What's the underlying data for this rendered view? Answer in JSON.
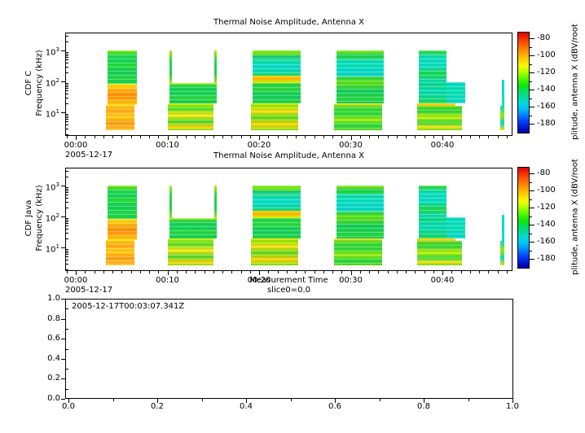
{
  "colors": {
    "background": "#ffffff",
    "axis": "#000000",
    "text": "#000000"
  },
  "chart_data": [
    {
      "id": "spectrogram-cdf-c",
      "type": "heatmap",
      "title": "Thermal Noise Amplitude, Antenna X",
      "ylabel_lines": [
        "CDF C",
        "Frequency (kHz)"
      ],
      "y_scale": "log",
      "y_units": "kHz",
      "y_major_ticks": [
        10,
        100,
        1000
      ],
      "y_range_kHz": [
        1.75,
        3980
      ],
      "x_axis": {
        "date": "2005-12-17",
        "range_minutes": [
          -1.16,
          47.64
        ],
        "minor_tick_step_minutes": 1,
        "major_ticks": [
          {
            "t": 0,
            "label": "00:00"
          },
          {
            "t": 10,
            "label": "00:10"
          },
          {
            "t": 20,
            "label": "00:20"
          },
          {
            "t": 30,
            "label": "00:30"
          },
          {
            "t": 40,
            "label": "00:40"
          }
        ]
      },
      "colorbar": {
        "label": "plitude, antenna X (dBV/root",
        "major_ticks": [
          -80,
          -100,
          -120,
          -140,
          -160,
          -180
        ],
        "minor_ticks": [
          -90,
          -110,
          -130,
          -150,
          -170
        ],
        "value_range_top_bottom": [
          -72,
          -191
        ],
        "gradient": "#dc0000 0%,#f83800 7%,#ff6e00 14%,#ffa400 21%,#ffd800 28%,#f4fc00 34%,#aaff00 40%,#58f800 46%,#14e800 52%,#00e052 58%,#00dc9c 64%,#00dcd8 70%,#00c0f4 76%,#0088ff 82%,#0048ff 88%,#001cd8 94%,#0000a8 100%"
      },
      "blocks": [
        {
          "t": [
            3.5,
            6.7
          ],
          "f": [
            85,
            1000
          ],
          "streak": true,
          "stops": "#8ce800 0%,#2ada46 12%,#12d25a 30%,#28dc38 45%,#10ce5c 62%,#24d846 80%,#18d050 100%"
        },
        {
          "t": [
            3.5,
            6.7
          ],
          "f": [
            17,
            85
          ],
          "streak": true,
          "stops": "#ffe400 0%,#ffae10 30%,#ff8c06 55%,#ffb20a 80%,#ffc800 100%"
        },
        {
          "t": [
            3.3,
            6.4
          ],
          "f": [
            2.6,
            17
          ],
          "streak": true,
          "stops": "#ffd200 0%,#ffa51e 22%,#ffcf10 45%,#ff9c14 70%,#ffc328 100%"
        },
        {
          "t": [
            10.2,
            10.45
          ],
          "f": [
            90,
            1000
          ],
          "stops": "#b4ec00 0%,#28d846 30%,#16d054 70%,#9ce800 100%"
        },
        {
          "t": [
            15.1,
            15.35
          ],
          "f": [
            90,
            1000
          ],
          "stops": "#b4ec00 0%,#28d846 30%,#16d054 70%,#9ce800 100%"
        },
        {
          "t": [
            10.2,
            15.35
          ],
          "f": [
            19,
            90
          ],
          "streak": true,
          "stops": "#b4f000 0%,#1ed44e 15%,#12d05a 45%,#2ad842 70%,#16ce54 100%"
        },
        {
          "t": [
            10.0,
            15.0
          ],
          "f": [
            2.6,
            19
          ],
          "streak": true,
          "stops": "#d2f000 0%,#4cdc28 20%,#ffe80a 45%,#46d82e 68%,#ffd400 88%,#8ae400 100%"
        },
        {
          "t": [
            19.3,
            24.5
          ],
          "f": [
            480,
            1000
          ],
          "streak": true,
          "stops": "#4adc24 0%,#9aec00 20%,#1ed24e 55%,#12ceb0 85%,#20d846 100%"
        },
        {
          "t": [
            19.3,
            24.5
          ],
          "f": [
            150,
            480
          ],
          "streak": true,
          "stops": "#0adc9a 0%,#06dcc8 35%,#0ad8c0 60%,#14da7c 100%"
        },
        {
          "t": [
            19.3,
            24.5
          ],
          "f": [
            88,
            150
          ],
          "stops": "#ffdc00 0%,#ffaa0a 45%,#c8ec00 80%,#ffe400 100%"
        },
        {
          "t": [
            19.3,
            24.5
          ],
          "f": [
            19,
            88
          ],
          "streak": true,
          "stops": "#1cd24e 0%,#2eda3c 30%,#10cc5e 60%,#26d644 100%"
        },
        {
          "t": [
            19.1,
            24.3
          ],
          "f": [
            2.6,
            19
          ],
          "streak": true,
          "stops": "#ffe000 0%,#8ce604 10%,#ffdc0a 30%,#54dc1e 52%,#ffd000 78%,#7ce40a 100%"
        },
        {
          "t": [
            28.4,
            33.6
          ],
          "f": [
            500,
            1000
          ],
          "streak": true,
          "stops": "#2eda3a 0%,#96ec00 15%,#16d254 45%,#22d846 75%,#12ce58 100%"
        },
        {
          "t": [
            28.4,
            33.6
          ],
          "f": [
            140,
            500
          ],
          "streak": true,
          "stops": "#06dcc2 0%,#0ae0b2 30%,#06d8cc 65%,#0cd8ba 100%"
        },
        {
          "t": [
            28.4,
            33.6
          ],
          "f": [
            19,
            140
          ],
          "streak": true,
          "stops": "#1ed44c 0%,#62e012 22%,#10cc5e 55%,#28d642 85%,#14ce56 100%"
        },
        {
          "t": [
            28.2,
            33.4
          ],
          "f": [
            2.6,
            19
          ],
          "streak": true,
          "stops": "#ffe000 0%,#3eda2e 15%,#2ed83a 40%,#9aec04 62%,#22d246 82%,#60de16 100%"
        },
        {
          "t": [
            37.4,
            40.4
          ],
          "f": [
            95,
            1000
          ],
          "streak": true,
          "stops": "#36da30 0%,#0adcba 22%,#08dec0 50%,#1ed64a 75%,#06d8c4 100%"
        },
        {
          "t": [
            37.4,
            40.4
          ],
          "f": [
            19,
            95
          ],
          "streak": true,
          "stops": "#10d878 0%,#06dab8 40%,#16d862 100%"
        },
        {
          "t": [
            40.4,
            42.45
          ],
          "f": [
            19,
            95
          ],
          "streak": true,
          "stops": "#06dcc6 0%,#0ae0b4 50%,#08d8ca 100%"
        },
        {
          "t": [
            37.2,
            41.4
          ],
          "f": [
            16,
            19
          ],
          "stops": "#ffe400 0%,#ffb40a 100%"
        },
        {
          "t": [
            37.2,
            42.15
          ],
          "f": [
            2.6,
            16
          ],
          "streak": true,
          "stops": "#5ce018 0%,#2cd43a 22%,#c4f000 48%,#2eda38 68%,#ffe40a 90%,#56dc1c 100%"
        },
        {
          "t": [
            46.5,
            46.78
          ],
          "f": [
            16,
            115
          ],
          "stops": "#04dcd0 0%,#06e0c2 100%"
        },
        {
          "t": [
            46.3,
            46.78
          ],
          "f": [
            2.6,
            16
          ],
          "stops": "#06dcc8 0%,#9ae800 40%,#04d8cc 70%,#ffd800 100%"
        }
      ]
    },
    {
      "id": "spectrogram-cdf-java",
      "type": "heatmap",
      "title": "Thermal Noise Amplitude, Antenna X",
      "ylabel_lines": [
        "CDF Java",
        "Frequency (kHz)"
      ],
      "xlabel": "Measurement Time",
      "xlabel2": "slice0=0.0",
      "y_scale": "log",
      "y_units": "kHz",
      "y_major_ticks": [
        10,
        100,
        1000
      ],
      "y_range_kHz": [
        1.75,
        3980
      ],
      "x_axis": {
        "date": "2005-12-17",
        "range_minutes": [
          -1.16,
          47.64
        ],
        "minor_tick_step_minutes": 1,
        "major_ticks": [
          {
            "t": 0,
            "label": "00:00"
          },
          {
            "t": 10,
            "label": "00:10"
          },
          {
            "t": 20,
            "label": "00:20"
          },
          {
            "t": 30,
            "label": "00:30"
          },
          {
            "t": 40,
            "label": "00:40"
          }
        ]
      },
      "colorbar": {
        "label": "plitude, antenna X (dBV/root",
        "major_ticks": [
          -80,
          -100,
          -120,
          -140,
          -160,
          -180
        ],
        "minor_ticks": [
          -90,
          -110,
          -130,
          -150,
          -170
        ],
        "value_range_top_bottom": [
          -72,
          -191
        ],
        "gradient": "#dc0000 0%,#f83800 7%,#ff6e00 14%,#ffa400 21%,#ffd800 28%,#f4fc00 34%,#aaff00 40%,#58f800 46%,#14e800 52%,#00e052 58%,#00dc9c 64%,#00dcd8 70%,#00c0f4 76%,#0088ff 82%,#0048ff 88%,#001cd8 94%,#0000a8 100%"
      },
      "blocks": "same-as-first"
    },
    {
      "id": "slice-plot",
      "type": "empty",
      "annotation": "2005-12-17T00:03:07.341Z",
      "x_ticks": [
        "0.0",
        "0.2",
        "0.4",
        "0.6",
        "0.8",
        "1.0"
      ],
      "y_ticks": [
        "0.0",
        "0.2",
        "0.4",
        "0.6",
        "0.8",
        "1.0"
      ],
      "x_range": [
        0,
        1
      ],
      "y_range": [
        0,
        1
      ]
    }
  ]
}
